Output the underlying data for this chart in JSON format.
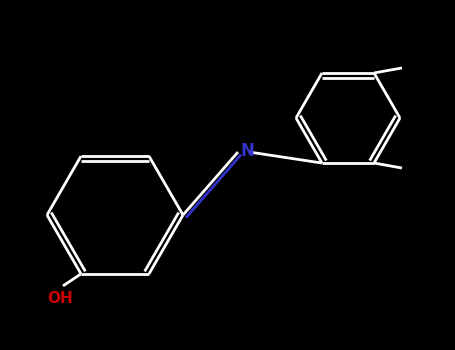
{
  "background_color": "#000000",
  "bond_color": "#ffffff",
  "N_color": "#3333cc",
  "O_color": "#cc0000",
  "figsize": [
    4.55,
    3.5
  ],
  "dpi": 100,
  "lw": 2.0,
  "lw_thin": 1.5
}
